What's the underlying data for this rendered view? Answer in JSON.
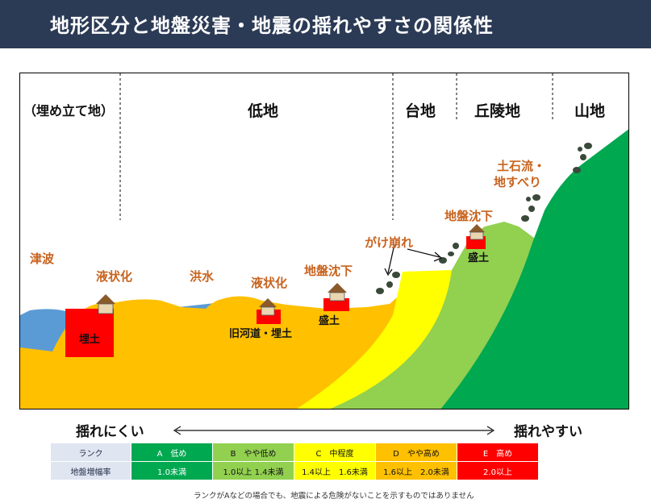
{
  "title": "地形区分と地盤災害・地震の揺れやすさの関係性",
  "zones": {
    "landfill": "（埋め立て地）",
    "lowland": "低地",
    "plateau": "台地",
    "hills": "丘陵地",
    "mountain": "山地"
  },
  "hazards": {
    "tsunami": "津波",
    "liquefaction1": "液状化",
    "flood": "洪水",
    "liquefaction2": "液状化",
    "subsidence1": "地盤沈下",
    "cliff_collapse": "がけ崩れ",
    "subsidence2": "地盤沈下",
    "debris_flow_line1": "土石流・",
    "debris_flow_line2": "地すべり"
  },
  "soil_labels": {
    "landfill": "埋土",
    "old_river": "旧河道・埋土",
    "fill1": "盛土",
    "fill2": "盛土"
  },
  "axis": {
    "left": "揺れにくい",
    "right": "揺れやすい"
  },
  "rank_table": {
    "row_headers": [
      "ランク",
      "地盤増幅率"
    ],
    "ranks": [
      {
        "rank": "A　低め",
        "rate": "1.0未満",
        "color": "#00a850",
        "text_color": "#ffffff"
      },
      {
        "rank": "B　やや低め",
        "rate": "1.0以上  1.4未満",
        "color": "#92d050",
        "text_color": "#111111"
      },
      {
        "rank": "C　中程度",
        "rate": "1.4以上　1.6未満",
        "color": "#ffff00",
        "text_color": "#111111"
      },
      {
        "rank": "D　やや高め",
        "rate": "1.6以上　2.0未満",
        "color": "#ffc000",
        "text_color": "#111111"
      },
      {
        "rank": "E　高め",
        "rate": "2.0以上",
        "color": "#ff0000",
        "text_color": "#ffffff"
      }
    ]
  },
  "note": "ランクがAなどの場合でも、地震による危険がないことを示すものではありません",
  "colors": {
    "title_bg": "#2b3a55",
    "water": "#5b9bd5",
    "orange": "#ffc000",
    "yellow": "#ffff00",
    "light_green": "#92d050",
    "green": "#00a850",
    "red": "#ff0000",
    "hazard_text": "#c8631e"
  }
}
